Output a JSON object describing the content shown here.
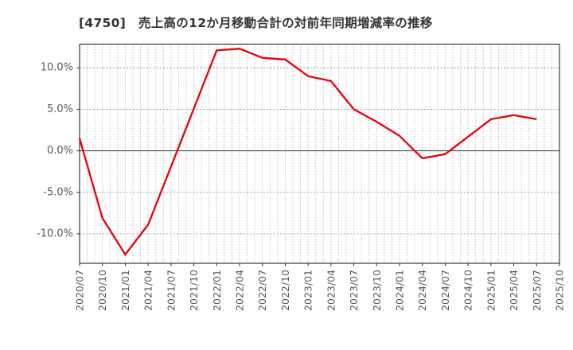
{
  "chart_data": {
    "type": "line",
    "title": "[4750]　売上高の12か月移動合計の対前年同期増減率の推移",
    "series_name": "売上高の12か月移動合計の対前年同期増減率",
    "categories": [
      "2020/07",
      "2020/10",
      "2021/01",
      "2021/04",
      "2021/07",
      "2021/10",
      "2022/01",
      "2022/04",
      "2022/07",
      "2022/10",
      "2023/01",
      "2023/04",
      "2023/07",
      "2023/10",
      "2024/01",
      "2024/04",
      "2024/07",
      "2024/10",
      "2025/01",
      "2025/04",
      "2025/07"
    ],
    "values": [
      1.5,
      -8.1,
      -12.5,
      -8.9,
      -1.9,
      5.1,
      12.1,
      12.3,
      11.2,
      11.0,
      9.0,
      8.4,
      5.0,
      3.5,
      1.8,
      -0.9,
      -0.4,
      1.7,
      3.8,
      4.3,
      3.8
    ],
    "unit": "%",
    "x_tick_labels": [
      "2020/07",
      "2020/10",
      "2021/01",
      "2021/04",
      "2021/07",
      "2021/10",
      "2022/01",
      "2022/04",
      "2022/07",
      "2022/10",
      "2023/01",
      "2023/04",
      "2023/07",
      "2023/10",
      "2024/01",
      "2024/04",
      "2024/07",
      "2024/10",
      "2025/01",
      "2025/04",
      "2025/07",
      "2025/10"
    ],
    "y_tick_labels": [
      "10.0%",
      "5.0%",
      "0.0%",
      "-5.0%",
      "-10.0%"
    ],
    "y_tick_values": [
      10,
      5,
      0,
      -5,
      -10
    ],
    "ylim": [
      -13.55,
      12.85
    ],
    "months_per_tick": 3,
    "grid": true,
    "legend": false,
    "line_color": "#e8000d",
    "grid_color": "#999999",
    "zero_line_color": "#4d4d4d",
    "frame_color": "#262626",
    "tick_label_color": "#595959",
    "title_color": "#333333"
  }
}
